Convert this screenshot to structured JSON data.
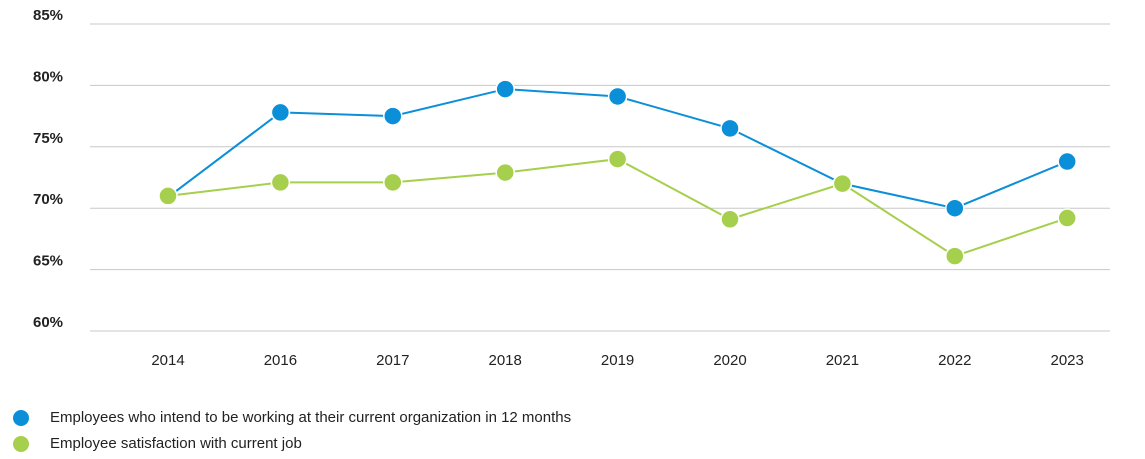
{
  "chart_data": {
    "type": "line",
    "categories": [
      "2014",
      "2016",
      "2017",
      "2018",
      "2019",
      "2020",
      "2021",
      "2022",
      "2023"
    ],
    "series": [
      {
        "name": "Employees who intend to be working at their current organization in 12 months",
        "color": "#0b8fd9",
        "values": [
          70.9,
          77.8,
          77.5,
          79.7,
          79.1,
          76.5,
          72.0,
          70.0,
          73.8
        ]
      },
      {
        "name": "Employee satisfaction with current job",
        "color": "#a5cf4c",
        "values": [
          71.0,
          72.1,
          72.1,
          72.9,
          74.0,
          69.1,
          72.0,
          66.1,
          69.2
        ]
      }
    ],
    "ylim": [
      60,
      85
    ],
    "yticks": [
      {
        "value": 60,
        "label": "60%"
      },
      {
        "value": 65,
        "label": "65%"
      },
      {
        "value": 70,
        "label": "70%"
      },
      {
        "value": 75,
        "label": "75%"
      },
      {
        "value": 80,
        "label": "80%"
      },
      {
        "value": 85,
        "label": "85%"
      }
    ],
    "grid": true,
    "legend": "bottom-left"
  }
}
